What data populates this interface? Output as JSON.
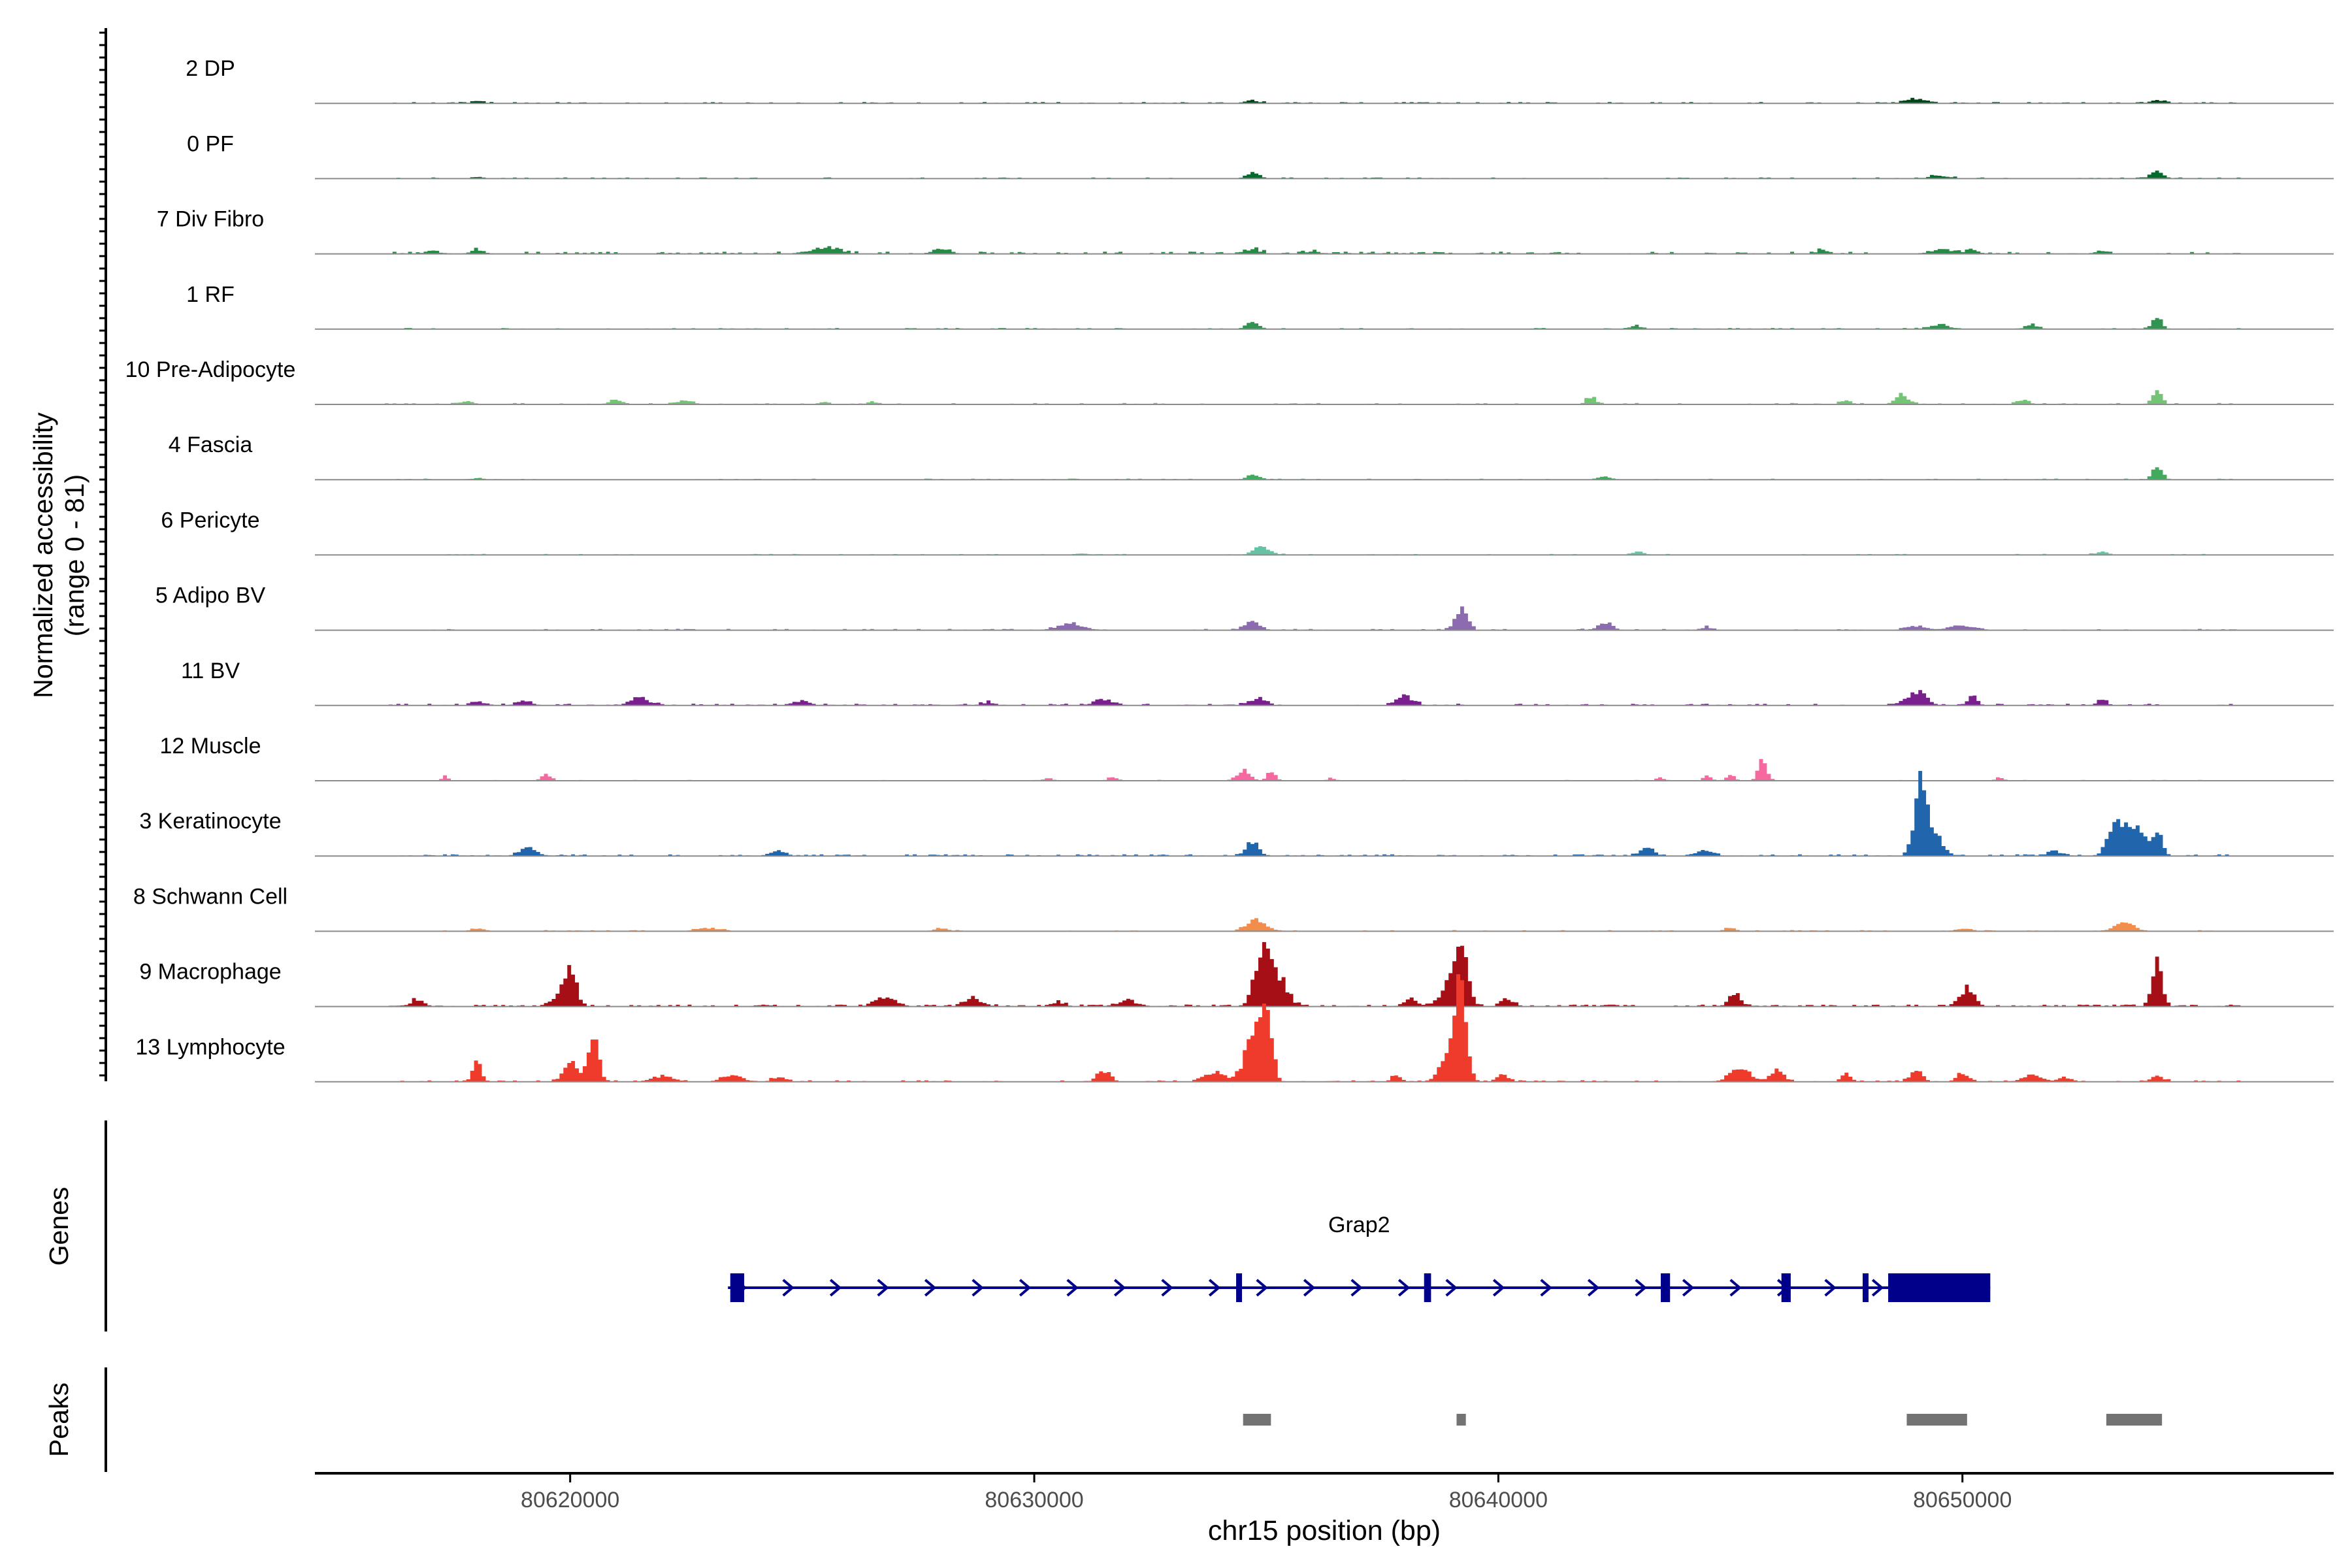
{
  "chart_data": {
    "type": "area",
    "title": "",
    "ylabel": [
      "Normalized accessibility",
      "(range 0 - 81)"
    ],
    "xlabel": "chr15 position (bp)",
    "xlim": [
      80614500,
      80658000
    ],
    "ylim": [
      0,
      81
    ],
    "x_ticks": [
      80620000,
      80630000,
      80640000,
      80650000
    ],
    "x_tick_labels": [
      "80620000",
      "80630000",
      "80640000",
      "80650000"
    ],
    "tracks": [
      {
        "name": "2 DP",
        "color": "#00441b",
        "noise": 0.9,
        "density": 0.45,
        "peaks": [
          [
            80649000,
            3,
            320
          ],
          [
            80634700,
            2,
            200
          ],
          [
            80654200,
            2,
            200
          ],
          [
            80618000,
            1,
            200
          ]
        ]
      },
      {
        "name": "0 PF",
        "color": "#006d2c",
        "noise": 0.8,
        "density": 0.35,
        "peaks": [
          [
            80634700,
            4,
            200
          ],
          [
            80654200,
            4,
            200
          ],
          [
            80649500,
            2,
            300
          ],
          [
            80618000,
            1,
            200
          ]
        ]
      },
      {
        "name": "7 Div Fibro",
        "color": "#238b45",
        "noise": 1.5,
        "density": 0.45,
        "peaks": [
          [
            80618000,
            3,
            200
          ],
          [
            80625500,
            4,
            400
          ],
          [
            80634700,
            3,
            250
          ],
          [
            80636000,
            2,
            200
          ],
          [
            80647000,
            2,
            200
          ],
          [
            80649500,
            3,
            300
          ],
          [
            80650200,
            3,
            200
          ],
          [
            80653000,
            2,
            200
          ],
          [
            80617000,
            2,
            200
          ],
          [
            80628000,
            2,
            300
          ]
        ]
      },
      {
        "name": "1 RF",
        "color": "#2f9450",
        "noise": 0.8,
        "density": 0.3,
        "peaks": [
          [
            80634700,
            4,
            200
          ],
          [
            80654200,
            7,
            150
          ],
          [
            80649500,
            3,
            300
          ],
          [
            80651500,
            3,
            200
          ],
          [
            80643000,
            2,
            200
          ]
        ]
      },
      {
        "name": "10 Pre-Adipocyte",
        "color": "#74c476",
        "noise": 1.0,
        "density": 0.3,
        "peaks": [
          [
            80654200,
            8,
            150
          ],
          [
            80648700,
            6,
            200
          ],
          [
            80642000,
            5,
            150
          ],
          [
            80647500,
            3,
            150
          ],
          [
            80651300,
            3,
            200
          ],
          [
            80617800,
            2,
            200
          ],
          [
            80621000,
            3,
            200
          ],
          [
            80622500,
            3,
            200
          ],
          [
            80625500,
            2,
            150
          ],
          [
            80626500,
            2,
            150
          ]
        ]
      },
      {
        "name": "4 Fascia",
        "color": "#41ab5d",
        "noise": 0.7,
        "density": 0.25,
        "peaks": [
          [
            80654200,
            9,
            150
          ],
          [
            80634700,
            3,
            200
          ],
          [
            80642300,
            2,
            200
          ],
          [
            80618000,
            1,
            200
          ]
        ]
      },
      {
        "name": "6 Pericyte",
        "color": "#66c2a4",
        "noise": 0.7,
        "density": 0.25,
        "peaks": [
          [
            80634900,
            5,
            250
          ],
          [
            80653000,
            2,
            200
          ],
          [
            80643000,
            2,
            200
          ],
          [
            80631000,
            1,
            200
          ]
        ]
      },
      {
        "name": "5 Adipo BV",
        "color": "#8c6bb1",
        "noise": 0.9,
        "density": 0.3,
        "peaks": [
          [
            80639200,
            16,
            180
          ],
          [
            80634700,
            7,
            220
          ],
          [
            80630800,
            4,
            400
          ],
          [
            80642300,
            4,
            250
          ],
          [
            80650000,
            3,
            400
          ],
          [
            80649000,
            3,
            300
          ],
          [
            80644500,
            2,
            200
          ]
        ]
      },
      {
        "name": "11 BV",
        "color": "#7a1f8e",
        "noise": 1.2,
        "density": 0.45,
        "peaks": [
          [
            80649000,
            9,
            300
          ],
          [
            80650200,
            6,
            150
          ],
          [
            80638000,
            6,
            250
          ],
          [
            80621500,
            5,
            300
          ],
          [
            80634800,
            4,
            250
          ],
          [
            80631500,
            4,
            300
          ],
          [
            80619000,
            3,
            200
          ],
          [
            80618000,
            3,
            150
          ],
          [
            80653000,
            4,
            150
          ],
          [
            80625000,
            3,
            200
          ],
          [
            80629000,
            2,
            200
          ]
        ]
      },
      {
        "name": "12 Muscle",
        "color": "#f768a1",
        "noise": 0.6,
        "density": 0.2,
        "peaks": [
          [
            80645700,
            14,
            130
          ],
          [
            80634500,
            7,
            200
          ],
          [
            80635100,
            6,
            130
          ],
          [
            80619500,
            4,
            150
          ],
          [
            80617300,
            3,
            100
          ],
          [
            80644500,
            3,
            130
          ],
          [
            80645000,
            4,
            130
          ],
          [
            80643500,
            2,
            130
          ],
          [
            80650800,
            2,
            130
          ],
          [
            80631700,
            3,
            130
          ],
          [
            80630300,
            2,
            130
          ],
          [
            80636400,
            2,
            100
          ]
        ]
      },
      {
        "name": "3 Keratinocyte",
        "color": "#2166ac",
        "noise": 1.1,
        "density": 0.55,
        "peaks": [
          [
            80649100,
            44,
            180
          ],
          [
            80649400,
            14,
            250
          ],
          [
            80653300,
            18,
            250
          ],
          [
            80653800,
            14,
            200
          ],
          [
            80654200,
            17,
            150
          ],
          [
            80653600,
            10,
            250
          ],
          [
            80634700,
            9,
            200
          ],
          [
            80643200,
            7,
            180
          ],
          [
            80619100,
            5,
            250
          ],
          [
            80624500,
            3,
            200
          ],
          [
            80644500,
            4,
            200
          ],
          [
            80652000,
            3,
            200
          ]
        ]
      },
      {
        "name": "8 Schwann Cell",
        "color": "#f28d4c",
        "noise": 0.8,
        "density": 0.3,
        "peaks": [
          [
            80634800,
            7,
            300
          ],
          [
            80653500,
            5,
            300
          ],
          [
            80623000,
            2,
            400
          ],
          [
            80628000,
            2,
            200
          ],
          [
            80618000,
            2,
            200
          ],
          [
            80645000,
            2,
            200
          ],
          [
            80650000,
            2,
            200
          ]
        ]
      },
      {
        "name": "9 Macrophage",
        "color": "#a50f15",
        "noise": 1.3,
        "density": 0.6,
        "peaks": [
          [
            80634900,
            34,
            220
          ],
          [
            80635200,
            22,
            300
          ],
          [
            80639200,
            30,
            200
          ],
          [
            80639000,
            16,
            300
          ],
          [
            80620000,
            24,
            180
          ],
          [
            80654200,
            27,
            150
          ],
          [
            80650100,
            12,
            220
          ],
          [
            80626800,
            7,
            300
          ],
          [
            80645100,
            8,
            180
          ],
          [
            80628700,
            5,
            250
          ],
          [
            80638100,
            5,
            200
          ],
          [
            80616700,
            4,
            200
          ],
          [
            80619800,
            6,
            300
          ],
          [
            80632000,
            4,
            300
          ],
          [
            80640200,
            4,
            200
          ],
          [
            80630500,
            3,
            200
          ]
        ]
      },
      {
        "name": "13 Lymphocyte",
        "color": "#ef3b2c",
        "noise": 1.0,
        "density": 0.35,
        "peaks": [
          [
            80635000,
            50,
            170
          ],
          [
            80634700,
            28,
            250
          ],
          [
            80639200,
            51,
            170
          ],
          [
            80639000,
            22,
            300
          ],
          [
            80620500,
            28,
            160
          ],
          [
            80620000,
            13,
            200
          ],
          [
            80618000,
            14,
            130
          ],
          [
            80631500,
            7,
            200
          ],
          [
            80633900,
            6,
            300
          ],
          [
            80645200,
            9,
            300
          ],
          [
            80646000,
            7,
            200
          ],
          [
            80649000,
            8,
            180
          ],
          [
            80650000,
            6,
            180
          ],
          [
            80651500,
            4,
            300
          ],
          [
            80654200,
            4,
            200
          ],
          [
            80622000,
            4,
            300
          ],
          [
            80623500,
            4,
            300
          ],
          [
            80624500,
            3,
            200
          ],
          [
            80637800,
            4,
            150
          ],
          [
            80647500,
            5,
            150
          ],
          [
            80640100,
            5,
            150
          ],
          [
            80652200,
            3,
            200
          ]
        ]
      }
    ],
    "genes": [
      {
        "name": "Grap2",
        "strand": "+",
        "start": 80623400,
        "end": 80650600,
        "exons": [
          [
            80623450,
            80623750
          ],
          [
            80634350,
            80634450
          ],
          [
            80638400,
            80638550
          ],
          [
            80643500,
            80643700
          ],
          [
            80646100,
            80646300
          ],
          [
            80647850,
            80647950
          ],
          [
            80648400,
            80650600
          ]
        ]
      }
    ],
    "peaks": [
      [
        80634500,
        80635100
      ],
      [
        80639100,
        80639300
      ],
      [
        80648800,
        80650100
      ],
      [
        80653100,
        80654300
      ]
    ],
    "panel_labels": {
      "genes": "Genes",
      "peaks": "Peaks"
    }
  }
}
